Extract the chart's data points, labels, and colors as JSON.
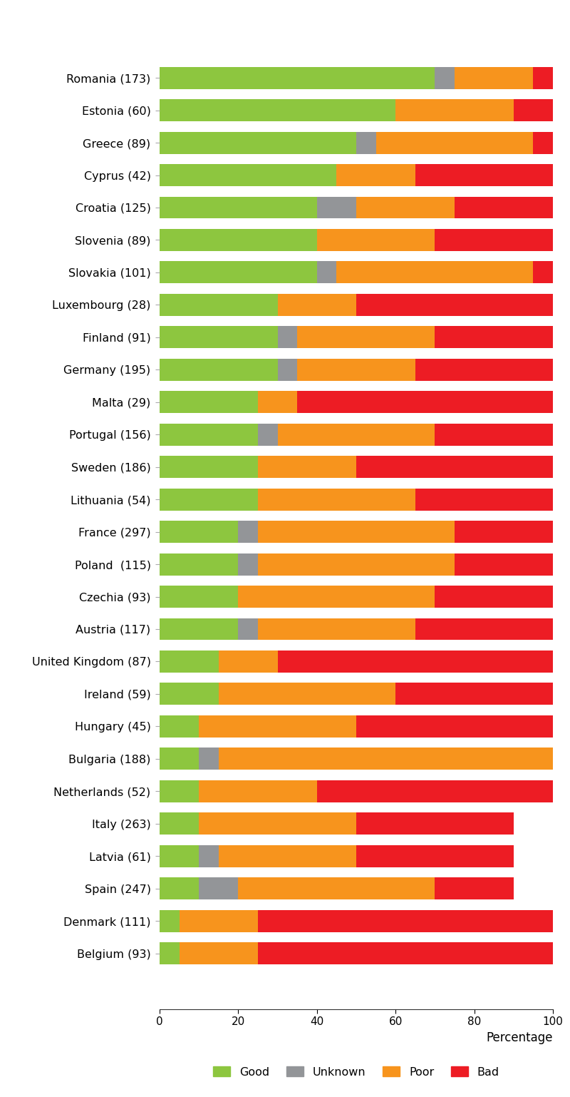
{
  "countries": [
    "Romania (173)",
    "Estonia (60)",
    "Greece (89)",
    "Cyprus (42)",
    "Croatia (125)",
    "Slovenia (89)",
    "Slovakia (101)",
    "Luxembourg (28)",
    "Finland (91)",
    "Germany (195)",
    "Malta (29)",
    "Portugal (156)",
    "Sweden (186)",
    "Lithuania (54)",
    "France (297)",
    "Poland  (115)",
    "Czechia (93)",
    "Austria (117)",
    "United Kingdom (87)",
    "Ireland (59)",
    "Hungary (45)",
    "Bulgaria (188)",
    "Netherlands (52)",
    "Italy (263)",
    "Latvia (61)",
    "Spain (247)",
    "Denmark (111)",
    "Belgium (93)"
  ],
  "good": [
    70,
    60,
    50,
    45,
    40,
    40,
    40,
    30,
    30,
    30,
    25,
    25,
    25,
    25,
    20,
    20,
    20,
    20,
    15,
    15,
    10,
    10,
    10,
    10,
    10,
    10,
    5,
    5
  ],
  "unknown": [
    5,
    0,
    5,
    0,
    10,
    0,
    5,
    0,
    5,
    5,
    0,
    5,
    0,
    0,
    5,
    5,
    0,
    5,
    0,
    0,
    0,
    5,
    0,
    0,
    5,
    10,
    0,
    0
  ],
  "poor": [
    20,
    30,
    40,
    20,
    25,
    30,
    50,
    20,
    35,
    30,
    10,
    40,
    25,
    40,
    50,
    50,
    50,
    40,
    15,
    45,
    40,
    85,
    30,
    40,
    35,
    50,
    20,
    20
  ],
  "bad": [
    5,
    10,
    5,
    35,
    25,
    30,
    10,
    50,
    35,
    40,
    65,
    30,
    50,
    35,
    25,
    25,
    30,
    40,
    70,
    40,
    50,
    5,
    60,
    40,
    40,
    20,
    75,
    75
  ],
  "colors": {
    "good": "#8dc63f",
    "unknown": "#939598",
    "poor": "#f7941d",
    "bad": "#ed1c24"
  },
  "xlabel": "Percentage",
  "xlim": [
    0,
    100
  ],
  "xticks": [
    0,
    20,
    40,
    60,
    80,
    100
  ],
  "legend_labels": [
    "Good",
    "Unknown",
    "Poor",
    "Bad"
  ],
  "bar_height": 0.68,
  "figsize": [
    8.0,
    15.38
  ],
  "dpi": 100,
  "background_color": "#ffffff",
  "label_fontsize": 11.5,
  "tick_fontsize": 11,
  "xlabel_fontsize": 12
}
